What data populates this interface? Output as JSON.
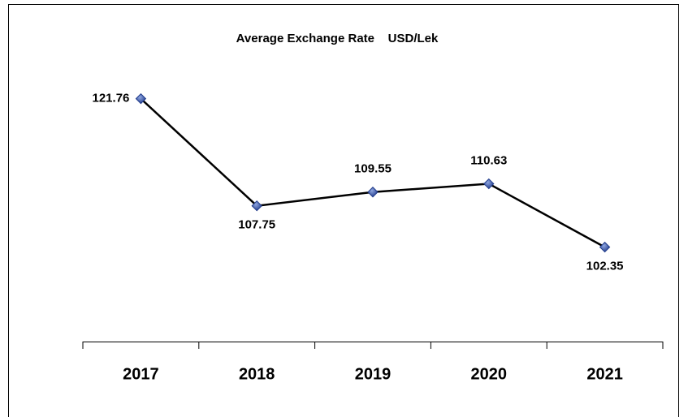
{
  "chart_data": {
    "type": "line",
    "title": "Average Exchange Rate    USD/Lek",
    "categories": [
      "2017",
      "2018",
      "2019",
      "2020",
      "2021"
    ],
    "series": [
      {
        "name": "USD/Lek",
        "color": "#000000",
        "marker_color": "#1f3a8a",
        "values": [
          121.76,
          107.75,
          109.55,
          110.63,
          102.35
        ]
      }
    ],
    "ylim": [
      90,
      130
    ]
  }
}
